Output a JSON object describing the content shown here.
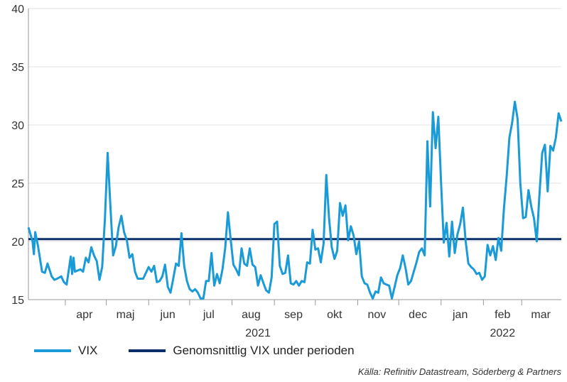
{
  "chart_data": {
    "type": "line",
    "title": "",
    "xlabel": "",
    "ylabel": "",
    "ylim": [
      15,
      40
    ],
    "yticks": [
      15,
      20,
      25,
      30,
      35,
      40
    ],
    "x_range": [
      "2021-03-05",
      "2022-03-30"
    ],
    "month_labels": [
      {
        "label": "apr",
        "date": "2021-04-15"
      },
      {
        "label": "maj",
        "date": "2021-05-15"
      },
      {
        "label": "jun",
        "date": "2021-06-15"
      },
      {
        "label": "jul",
        "date": "2021-07-15"
      },
      {
        "label": "aug",
        "date": "2021-08-15"
      },
      {
        "label": "sep",
        "date": "2021-09-15"
      },
      {
        "label": "okt",
        "date": "2021-10-15"
      },
      {
        "label": "nov",
        "date": "2021-11-15"
      },
      {
        "label": "dec",
        "date": "2021-12-15"
      },
      {
        "label": "jan",
        "date": "2022-01-15"
      },
      {
        "label": "feb",
        "date": "2022-02-15"
      },
      {
        "label": "mar",
        "date": "2022-03-15"
      }
    ],
    "month_boundaries": [
      "2021-04-01",
      "2021-05-01",
      "2021-06-01",
      "2021-07-01",
      "2021-08-01",
      "2021-09-01",
      "2021-10-01",
      "2021-11-01",
      "2021-12-01",
      "2022-01-01",
      "2022-02-01",
      "2022-03-01"
    ],
    "year_labels": [
      {
        "label": "2021",
        "date": "2021-08-20"
      },
      {
        "label": "2022",
        "date": "2022-02-15"
      }
    ],
    "colors": {
      "vix": "#1a9bd7",
      "average": "#0b2f6b",
      "axis": "#9a9a9a",
      "grid": "#e2e2e2"
    },
    "series": [
      {
        "name": "VIX",
        "data": [
          [
            "2021-03-05",
            21.2
          ],
          [
            "2021-03-08",
            20.0
          ],
          [
            "2021-03-09",
            18.9
          ],
          [
            "2021-03-10",
            20.8
          ],
          [
            "2021-03-12",
            19.6
          ],
          [
            "2021-03-15",
            17.4
          ],
          [
            "2021-03-17",
            17.3
          ],
          [
            "2021-03-19",
            18.1
          ],
          [
            "2021-03-22",
            17.0
          ],
          [
            "2021-03-24",
            16.7
          ],
          [
            "2021-03-26",
            16.8
          ],
          [
            "2021-03-29",
            17.0
          ],
          [
            "2021-03-31",
            16.5
          ],
          [
            "2021-04-02",
            16.3
          ],
          [
            "2021-04-05",
            18.7
          ],
          [
            "2021-04-06",
            17.2
          ],
          [
            "2021-04-07",
            18.6
          ],
          [
            "2021-04-08",
            17.4
          ],
          [
            "2021-04-12",
            17.6
          ],
          [
            "2021-04-14",
            17.4
          ],
          [
            "2021-04-16",
            18.6
          ],
          [
            "2021-04-18",
            18.2
          ],
          [
            "2021-04-20",
            19.5
          ],
          [
            "2021-04-22",
            18.8
          ],
          [
            "2021-04-24",
            18.3
          ],
          [
            "2021-04-26",
            16.7
          ],
          [
            "2021-04-28",
            17.8
          ],
          [
            "2021-04-30",
            22.0
          ],
          [
            "2021-05-02",
            27.6
          ],
          [
            "2021-05-04",
            23.0
          ],
          [
            "2021-05-06",
            18.8
          ],
          [
            "2021-05-08",
            19.6
          ],
          [
            "2021-05-10",
            21.2
          ],
          [
            "2021-05-12",
            22.2
          ],
          [
            "2021-05-14",
            20.8
          ],
          [
            "2021-05-16",
            20.1
          ],
          [
            "2021-05-18",
            18.6
          ],
          [
            "2021-05-20",
            18.9
          ],
          [
            "2021-05-22",
            17.4
          ],
          [
            "2021-05-24",
            16.8
          ],
          [
            "2021-05-28",
            16.8
          ],
          [
            "2021-06-01",
            17.8
          ],
          [
            "2021-06-03",
            17.4
          ],
          [
            "2021-06-05",
            17.9
          ],
          [
            "2021-06-07",
            16.5
          ],
          [
            "2021-06-09",
            16.6
          ],
          [
            "2021-06-11",
            17.0
          ],
          [
            "2021-06-13",
            18.0
          ],
          [
            "2021-06-15",
            16.1
          ],
          [
            "2021-06-17",
            15.6
          ],
          [
            "2021-06-19",
            16.8
          ],
          [
            "2021-06-21",
            18.1
          ],
          [
            "2021-06-23",
            17.9
          ],
          [
            "2021-06-25",
            20.7
          ],
          [
            "2021-06-27",
            17.9
          ],
          [
            "2021-06-29",
            16.6
          ],
          [
            "2021-07-01",
            15.9
          ],
          [
            "2021-07-03",
            15.7
          ],
          [
            "2021-07-05",
            15.9
          ],
          [
            "2021-07-07",
            15.6
          ],
          [
            "2021-07-09",
            15.1
          ],
          [
            "2021-07-11",
            15.1
          ],
          [
            "2021-07-13",
            16.6
          ],
          [
            "2021-07-15",
            16.6
          ],
          [
            "2021-07-17",
            19.0
          ],
          [
            "2021-07-19",
            16.2
          ],
          [
            "2021-07-21",
            17.2
          ],
          [
            "2021-07-23",
            16.4
          ],
          [
            "2021-07-25",
            17.6
          ],
          [
            "2021-07-27",
            19.4
          ],
          [
            "2021-07-29",
            22.5
          ],
          [
            "2021-07-31",
            20.2
          ],
          [
            "2021-08-02",
            18.0
          ],
          [
            "2021-08-04",
            17.6
          ],
          [
            "2021-08-06",
            17.1
          ],
          [
            "2021-08-08",
            19.4
          ],
          [
            "2021-08-10",
            18.1
          ],
          [
            "2021-08-12",
            17.9
          ],
          [
            "2021-08-14",
            19.4
          ],
          [
            "2021-08-16",
            18.0
          ],
          [
            "2021-08-18",
            17.8
          ],
          [
            "2021-08-20",
            16.2
          ],
          [
            "2021-08-22",
            17.1
          ],
          [
            "2021-08-24",
            16.4
          ],
          [
            "2021-08-26",
            15.8
          ],
          [
            "2021-08-28",
            15.6
          ],
          [
            "2021-08-30",
            16.9
          ],
          [
            "2021-09-01",
            21.5
          ],
          [
            "2021-09-03",
            21.7
          ],
          [
            "2021-09-05",
            17.9
          ],
          [
            "2021-09-07",
            17.2
          ],
          [
            "2021-09-09",
            17.3
          ],
          [
            "2021-09-11",
            18.8
          ],
          [
            "2021-09-13",
            16.4
          ],
          [
            "2021-09-15",
            16.3
          ],
          [
            "2021-09-17",
            16.6
          ],
          [
            "2021-09-19",
            16.2
          ],
          [
            "2021-09-21",
            16.6
          ],
          [
            "2021-09-23",
            16.5
          ],
          [
            "2021-09-25",
            18.2
          ],
          [
            "2021-09-27",
            18.1
          ],
          [
            "2021-09-29",
            21.0
          ],
          [
            "2021-10-01",
            19.3
          ],
          [
            "2021-10-03",
            19.4
          ],
          [
            "2021-10-05",
            18.2
          ],
          [
            "2021-10-07",
            19.8
          ],
          [
            "2021-10-09",
            25.7
          ],
          [
            "2021-10-11",
            22.0
          ],
          [
            "2021-10-13",
            19.5
          ],
          [
            "2021-10-15",
            18.5
          ],
          [
            "2021-10-17",
            19.2
          ],
          [
            "2021-10-19",
            23.3
          ],
          [
            "2021-10-21",
            22.2
          ],
          [
            "2021-10-23",
            23.1
          ],
          [
            "2021-10-25",
            20.1
          ],
          [
            "2021-10-27",
            21.3
          ],
          [
            "2021-10-29",
            20.5
          ],
          [
            "2021-10-31",
            18.9
          ],
          [
            "2021-11-02",
            20.0
          ],
          [
            "2021-11-04",
            17.0
          ],
          [
            "2021-11-06",
            16.4
          ],
          [
            "2021-11-08",
            16.3
          ],
          [
            "2021-11-10",
            15.6
          ],
          [
            "2021-11-12",
            15.1
          ],
          [
            "2021-11-14",
            15.7
          ],
          [
            "2021-11-16",
            15.6
          ],
          [
            "2021-11-18",
            16.9
          ],
          [
            "2021-11-20",
            16.4
          ],
          [
            "2021-11-22",
            16.3
          ],
          [
            "2021-11-24",
            16.2
          ],
          [
            "2021-11-26",
            15.1
          ],
          [
            "2021-11-28",
            16.1
          ],
          [
            "2021-11-30",
            17.1
          ],
          [
            "2021-12-02",
            17.7
          ],
          [
            "2021-12-04",
            18.8
          ],
          [
            "2021-12-06",
            17.7
          ],
          [
            "2021-12-08",
            16.3
          ],
          [
            "2021-12-10",
            16.6
          ],
          [
            "2021-12-12",
            17.4
          ],
          [
            "2021-12-14",
            18.2
          ],
          [
            "2021-12-16",
            19.1
          ],
          [
            "2021-12-18",
            19.4
          ],
          [
            "2021-12-20",
            18.8
          ],
          [
            "2021-12-22",
            28.6
          ],
          [
            "2021-12-24",
            23.0
          ],
          [
            "2021-12-26",
            31.1
          ],
          [
            "2021-12-28",
            28.0
          ],
          [
            "2021-12-30",
            30.7
          ],
          [
            "2022-01-01",
            25.0
          ],
          [
            "2022-01-03",
            19.9
          ],
          [
            "2022-01-05",
            21.6
          ],
          [
            "2022-01-07",
            18.7
          ],
          [
            "2022-01-09",
            21.7
          ],
          [
            "2022-01-11",
            19.0
          ],
          [
            "2022-01-13",
            20.6
          ],
          [
            "2022-01-15",
            21.5
          ],
          [
            "2022-01-17",
            22.9
          ],
          [
            "2022-01-19",
            20.0
          ],
          [
            "2022-01-21",
            18.1
          ],
          [
            "2022-01-23",
            17.8
          ],
          [
            "2022-01-25",
            17.6
          ],
          [
            "2022-01-27",
            17.2
          ],
          [
            "2022-01-29",
            17.3
          ],
          [
            "2022-01-31",
            16.7
          ],
          [
            "2022-02-02",
            17.0
          ],
          [
            "2022-02-04",
            19.7
          ],
          [
            "2022-02-06",
            18.8
          ],
          [
            "2022-02-08",
            19.6
          ],
          [
            "2022-02-10",
            18.4
          ],
          [
            "2022-02-12",
            20.3
          ],
          [
            "2022-02-14",
            19.2
          ],
          [
            "2022-02-16",
            22.8
          ],
          [
            "2022-02-18",
            25.6
          ],
          [
            "2022-02-20",
            28.9
          ],
          [
            "2022-02-22",
            30.2
          ],
          [
            "2022-02-24",
            32.0
          ],
          [
            "2022-02-26",
            30.5
          ],
          [
            "2022-02-28",
            25.0
          ],
          [
            "2022-03-02",
            22.0
          ],
          [
            "2022-03-04",
            22.1
          ],
          [
            "2022-03-06",
            24.4
          ],
          [
            "2022-03-08",
            23.0
          ],
          [
            "2022-03-10",
            22.0
          ],
          [
            "2022-03-12",
            20.0
          ],
          [
            "2022-03-14",
            24.0
          ],
          [
            "2022-03-16",
            27.6
          ],
          [
            "2022-03-18",
            28.3
          ],
          [
            "2022-03-20",
            24.3
          ],
          [
            "2022-03-22",
            28.2
          ],
          [
            "2022-03-24",
            27.8
          ],
          [
            "2022-03-26",
            28.9
          ],
          [
            "2022-03-28",
            31.0
          ],
          [
            "2022-03-30",
            30.3
          ]
        ]
      },
      {
        "name": "Genomsnittlig VIX under perioden",
        "constant": 20.2
      }
    ],
    "legend_position": "bottom-left",
    "grid": true
  },
  "legend": {
    "vix": "VIX",
    "average": "Genomsnittlig VIX under perioden"
  },
  "source": "Källa: Refinitiv Datastream, Söderberg & Partners"
}
